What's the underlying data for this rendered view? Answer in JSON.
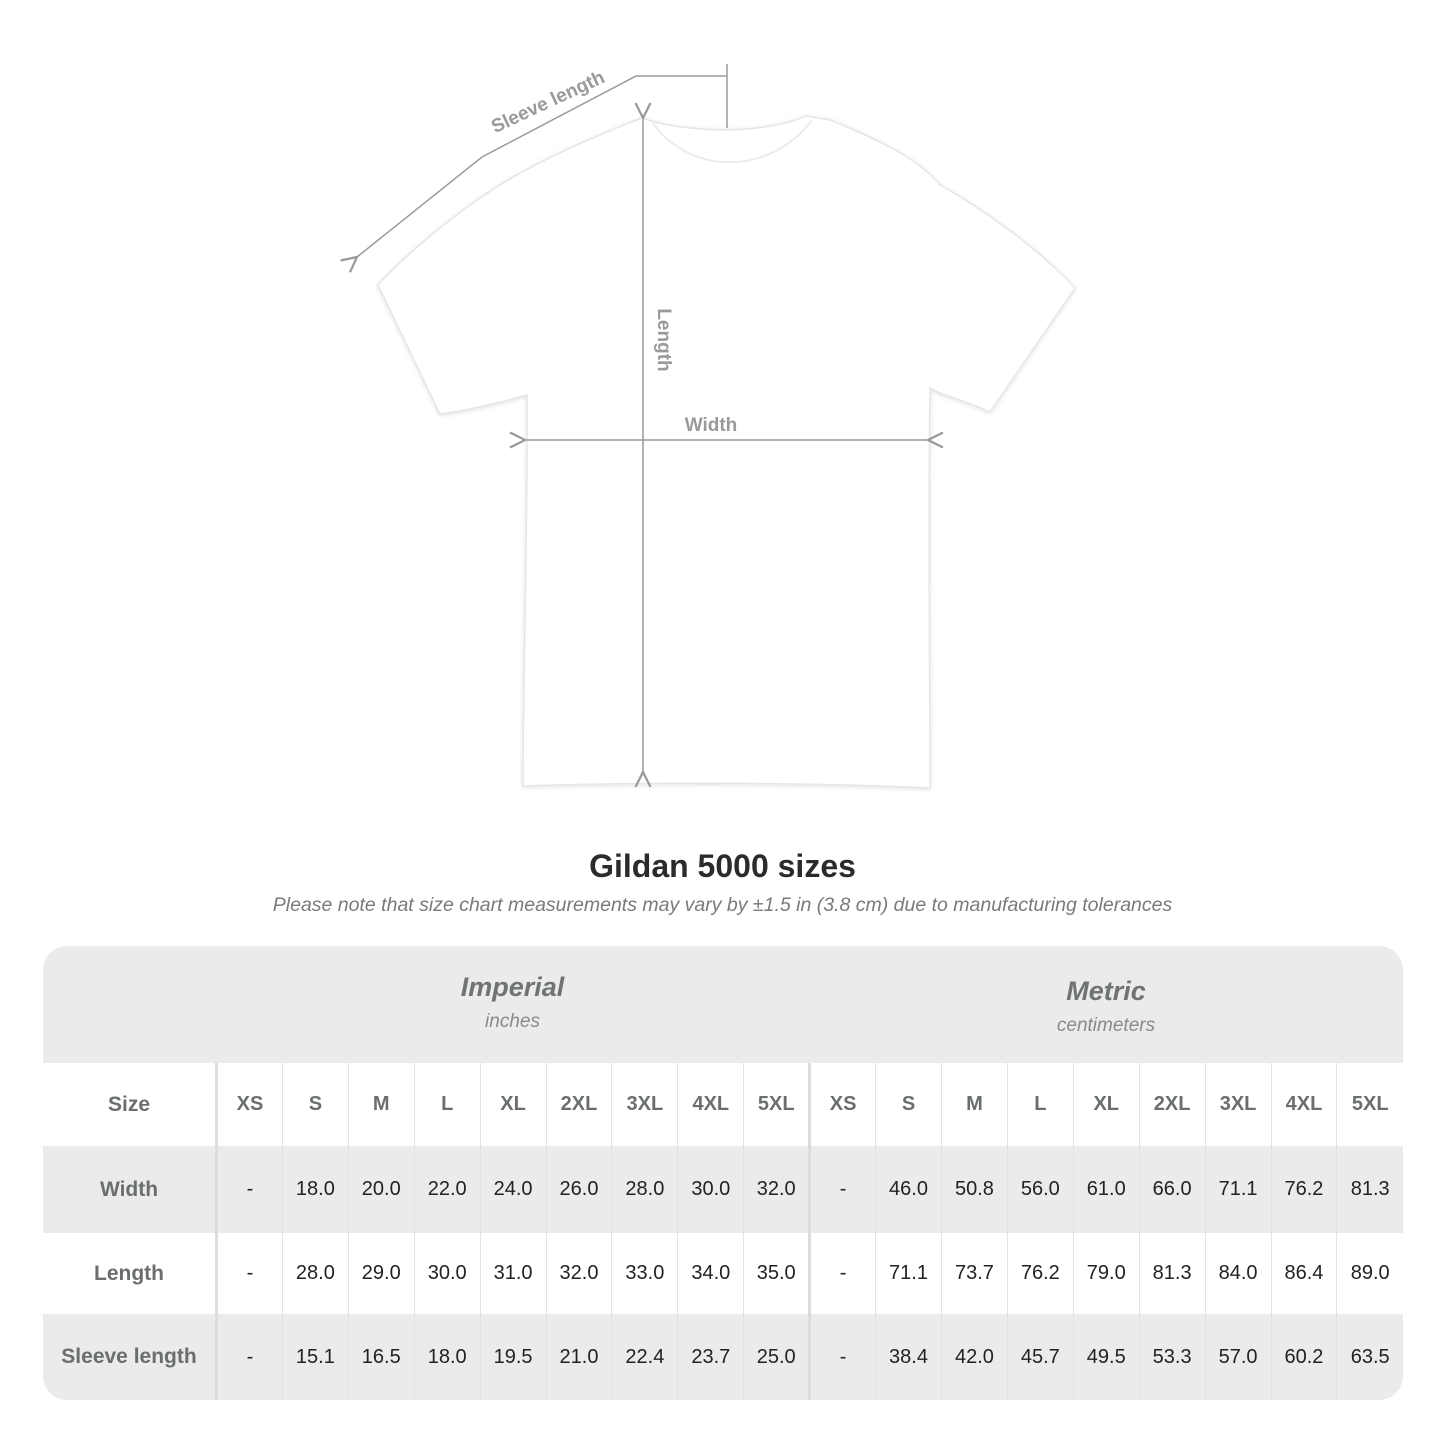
{
  "diagram": {
    "labels": {
      "sleeve": "Sleeve length",
      "length": "Length",
      "width": "Width"
    }
  },
  "title": "Gildan 5000 sizes",
  "subtitle": "Please note that size chart measurements may vary by ±1.5 in (3.8 cm) due to manufacturing tolerances",
  "imperial": {
    "name": "Imperial",
    "unit": "inches"
  },
  "metric": {
    "name": "Metric",
    "unit": "centimeters"
  },
  "size_label": "Size",
  "sizes": [
    "XS",
    "S",
    "M",
    "L",
    "XL",
    "2XL",
    "3XL",
    "4XL",
    "5XL"
  ],
  "rows": [
    {
      "label": "Width",
      "imperial": [
        "-",
        "18.0",
        "20.0",
        "22.0",
        "24.0",
        "26.0",
        "28.0",
        "30.0",
        "32.0"
      ],
      "metric": [
        "-",
        "46.0",
        "50.8",
        "56.0",
        "61.0",
        "66.0",
        "71.1",
        "76.2",
        "81.3"
      ]
    },
    {
      "label": "Length",
      "imperial": [
        "-",
        "28.0",
        "29.0",
        "30.0",
        "31.0",
        "32.0",
        "33.0",
        "34.0",
        "35.0"
      ],
      "metric": [
        "-",
        "71.1",
        "73.7",
        "76.2",
        "79.0",
        "81.3",
        "84.0",
        "86.4",
        "89.0"
      ]
    },
    {
      "label": "Sleeve length",
      "imperial": [
        "-",
        "15.1",
        "16.5",
        "18.0",
        "19.5",
        "21.0",
        "22.4",
        "23.7",
        "25.0"
      ],
      "metric": [
        "-",
        "38.4",
        "42.0",
        "45.7",
        "49.5",
        "53.3",
        "57.0",
        "60.2",
        "63.5"
      ]
    }
  ],
  "colors": {
    "measure_line": "#9a9a9a",
    "table_gray": "#ebebeb",
    "header_text": "#6f7374"
  }
}
